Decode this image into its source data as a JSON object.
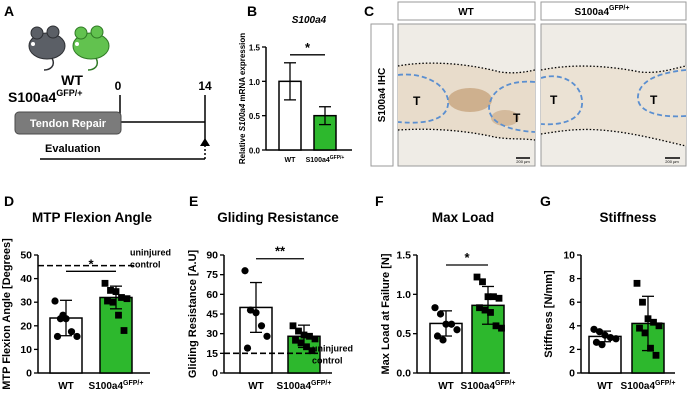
{
  "colors": {
    "bar_wt": "#ffffff",
    "bar_ko": "#2db82d",
    "tissue": "#efece6",
    "tendon_outline": "#5b8fd0",
    "stain": "#b07a45"
  },
  "panels": {
    "A": "A",
    "B": "B",
    "C": "C",
    "D": "D",
    "E": "E",
    "F": "F",
    "G": "G"
  },
  "schematic": {
    "group_wt": "WT",
    "group_ko": "S100a4",
    "group_ko_sup": "GFP/+",
    "day_start": "0",
    "day_end": "14",
    "procedure": "Tendon Repair",
    "evaluation": "Evaluation",
    "mouse_icons": [
      "mouse-gray-icon",
      "mouse-green-icon"
    ]
  },
  "ihc": {
    "header_wt": "WT",
    "header_ko": "S100a4",
    "header_ko_sup": "GFP/+",
    "row_label": "S100a4 IHC",
    "tendon_labels": [
      "T",
      "T",
      "T",
      "T"
    ],
    "scale_label": "200 µm"
  },
  "chart_data": [
    {
      "id": "B",
      "type": "bar",
      "title": "S100a4",
      "ylabel_parts": [
        "Relative ",
        "S100a4",
        " mRNA expression"
      ],
      "categories": [
        "WT",
        "S100a4"
      ],
      "category_sup": [
        "",
        "GFP/+"
      ],
      "values": [
        1.0,
        0.5
      ],
      "errors": [
        0.27,
        0.13
      ],
      "ylim": [
        0,
        1.5
      ],
      "yticks": [
        "0.0",
        "0.5",
        "1.0",
        "1.5"
      ],
      "ytick_values": [
        0,
        0.5,
        1.0,
        1.5
      ],
      "significance": "*",
      "points": [
        [],
        []
      ]
    },
    {
      "id": "D",
      "type": "bar",
      "title": "MTP Flexion Angle",
      "ylabel": "MTP Flexion  Angle [Degrees]",
      "categories": [
        "WT",
        "S100a4"
      ],
      "category_sup": [
        "",
        "GFP/+"
      ],
      "values": [
        23.3,
        32.0
      ],
      "errors": [
        7.5,
        4.8
      ],
      "ylim": [
        0,
        50
      ],
      "yticks": [
        "0",
        "10",
        "20",
        "30",
        "40",
        "50"
      ],
      "ytick_values": [
        0,
        10,
        20,
        30,
        40,
        50
      ],
      "significance": "*",
      "reference": {
        "value": 45.5,
        "label_line1": "uninjured",
        "label_line2": "control"
      },
      "points": [
        [
          30.5,
          23,
          23,
          17.5,
          15.5,
          15.5,
          24.5
        ],
        [
          38,
          35,
          34.5,
          32,
          31.5,
          30.5,
          30,
          24.5,
          18
        ]
      ]
    },
    {
      "id": "E",
      "type": "bar",
      "title": "Gliding Resistance",
      "ylabel": "Gliding Resistance [A.U]",
      "categories": [
        "WT",
        "S100a4"
      ],
      "category_sup": [
        "",
        "GFP/+"
      ],
      "values": [
        50,
        28
      ],
      "errors": [
        19,
        8.5
      ],
      "ylim": [
        0,
        90
      ],
      "yticks": [
        "0",
        "15",
        "30",
        "45",
        "60",
        "75",
        "90"
      ],
      "ytick_values": [
        0,
        15,
        30,
        45,
        60,
        75,
        90
      ],
      "significance": "**",
      "reference": {
        "value": 15,
        "label_line1": "uninjured",
        "label_line2": "control"
      },
      "points": [
        [
          78,
          48,
          46,
          36,
          28,
          19
        ],
        [
          36,
          32,
          29,
          28,
          26,
          25,
          23,
          20,
          17
        ]
      ]
    },
    {
      "id": "F",
      "type": "bar",
      "title": "Max Load",
      "ylabel": "Max Load at Failure [N]",
      "categories": [
        "WT",
        "S100a4"
      ],
      "category_sup": [
        "",
        "GFP/+"
      ],
      "values": [
        0.63,
        0.86
      ],
      "errors": [
        0.16,
        0.24
      ],
      "ylim": [
        0,
        1.5
      ],
      "yticks": [
        "0.0",
        "0.5",
        "1.0",
        "1.5"
      ],
      "ytick_values": [
        0,
        0.5,
        1.0,
        1.5
      ],
      "significance": "*",
      "points": [
        [
          0.83,
          0.75,
          0.62,
          0.62,
          0.55,
          0.47,
          0.42
        ],
        [
          1.22,
          1.16,
          0.97,
          0.97,
          0.95,
          0.83,
          0.8,
          0.77,
          0.6,
          0.57
        ]
      ]
    },
    {
      "id": "G",
      "type": "bar",
      "title": "Stiffness",
      "ylabel": "Stiffness [N/mm]",
      "categories": [
        "WT",
        "S100a4"
      ],
      "category_sup": [
        "",
        "GFP/+"
      ],
      "values": [
        3.1,
        4.2
      ],
      "errors": [
        0.45,
        2.3
      ],
      "ylim": [
        0,
        10
      ],
      "yticks": [
        "0",
        "2",
        "4",
        "6",
        "8",
        "10"
      ],
      "ytick_values": [
        0,
        2,
        4,
        6,
        8,
        10
      ],
      "significance": "",
      "points": [
        [
          3.7,
          3.5,
          3.2,
          3.0,
          2.9,
          2.6,
          2.4
        ],
        [
          7.6,
          6.0,
          4.6,
          4.3,
          4.0,
          3.8,
          3.4,
          2.1,
          1.5
        ]
      ]
    }
  ]
}
